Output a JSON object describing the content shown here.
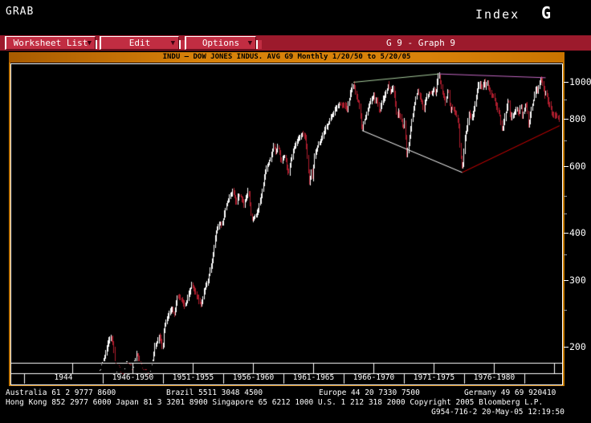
{
  "terminal": {
    "grab_label": "GRAB",
    "index_type": "Index",
    "index_key": "G"
  },
  "menubar": {
    "items": [
      {
        "label": "Worksheet List"
      },
      {
        "label": "Edit"
      },
      {
        "label": "Options"
      }
    ],
    "graph_slot": "G 9 - Graph 9"
  },
  "chart_header": {
    "title": "INDU – DOW JONES INDUS. AVG G9 Monthly 1/20/50 to 5/20/05"
  },
  "colors": {
    "menubar_bg": "#9c1a2c",
    "button_bg": "#c12d42",
    "header_orange": "#d8820a",
    "frame_orange": "#c67a00",
    "bar_up": "#ffffff",
    "bar_down": "#ad1d2d",
    "trend_green": "#a9cf9f",
    "trend_magenta": "#c468c4",
    "trend_white": "#ffffff",
    "trend_red": "#d40000",
    "axis": "#ffffff"
  },
  "chart_data": {
    "type": "candlestick",
    "title": "INDU – DOW JONES INDUS. AVG G9 Monthly 1/20/50 to 5/20/05",
    "interval": "monthly",
    "y_axis": {
      "scale": "log",
      "major_ticks": [
        1000,
        800,
        600,
        400,
        300,
        200
      ],
      "minor_ticks": [
        900,
        700,
        500,
        450,
        350,
        250
      ],
      "side": "right"
    },
    "x_axis": {
      "labels": [
        "1944",
        "1946-1950",
        "1951-1955",
        "1956-1960",
        "1961-1965",
        "1966-1970",
        "1971-1975",
        "1976-1980"
      ]
    },
    "time_range": [
      1945.42,
      1982.83
    ],
    "bar_interval_years": 0.0833,
    "up_color": "#ffffff",
    "down_color": "#ad1d2d",
    "series_anchors": [
      [
        1945.42,
        170
      ],
      [
        1945.7,
        180
      ],
      [
        1945.92,
        192
      ],
      [
        1946.1,
        205
      ],
      [
        1946.37,
        212
      ],
      [
        1946.55,
        203
      ],
      [
        1946.76,
        165
      ],
      [
        1946.92,
        177
      ],
      [
        1947.1,
        170
      ],
      [
        1947.4,
        163
      ],
      [
        1947.6,
        182
      ],
      [
        1947.9,
        177
      ],
      [
        1948.1,
        171
      ],
      [
        1948.45,
        193
      ],
      [
        1948.7,
        180
      ],
      [
        1948.9,
        172
      ],
      [
        1949.2,
        171
      ],
      [
        1949.45,
        162
      ],
      [
        1949.7,
        180
      ],
      [
        1949.92,
        200
      ],
      [
        1950.3,
        214
      ],
      [
        1950.55,
        197
      ],
      [
        1950.7,
        226
      ],
      [
        1950.92,
        235
      ],
      [
        1951.1,
        249
      ],
      [
        1951.35,
        250
      ],
      [
        1951.5,
        243
      ],
      [
        1951.75,
        270
      ],
      [
        1951.92,
        269
      ],
      [
        1952.35,
        256
      ],
      [
        1952.6,
        270
      ],
      [
        1952.92,
        292
      ],
      [
        1953.15,
        280
      ],
      [
        1953.4,
        270
      ],
      [
        1953.7,
        255
      ],
      [
        1953.92,
        281
      ],
      [
        1954.25,
        300
      ],
      [
        1954.55,
        333
      ],
      [
        1954.92,
        404
      ],
      [
        1955.2,
        425
      ],
      [
        1955.4,
        420
      ],
      [
        1955.7,
        468
      ],
      [
        1955.92,
        488
      ],
      [
        1956.3,
        516
      ],
      [
        1956.55,
        478
      ],
      [
        1956.7,
        502
      ],
      [
        1956.92,
        499
      ],
      [
        1957.15,
        475
      ],
      [
        1957.55,
        520
      ],
      [
        1957.78,
        435
      ],
      [
        1957.95,
        436
      ],
      [
        1958.3,
        455
      ],
      [
        1958.6,
        505
      ],
      [
        1958.92,
        584
      ],
      [
        1959.35,
        630
      ],
      [
        1959.58,
        679
      ],
      [
        1959.78,
        650
      ],
      [
        1959.95,
        679
      ],
      [
        1960.2,
        616
      ],
      [
        1960.5,
        640
      ],
      [
        1960.8,
        566
      ],
      [
        1960.95,
        616
      ],
      [
        1961.3,
        678
      ],
      [
        1961.6,
        702
      ],
      [
        1961.92,
        731
      ],
      [
        1962.2,
        710
      ],
      [
        1962.45,
        562
      ],
      [
        1962.52,
        536
      ],
      [
        1962.65,
        580
      ],
      [
        1962.75,
        558
      ],
      [
        1962.95,
        652
      ],
      [
        1963.4,
        700
      ],
      [
        1963.7,
        740
      ],
      [
        1963.92,
        763
      ],
      [
        1964.45,
        830
      ],
      [
        1964.92,
        874
      ],
      [
        1965.4,
        868
      ],
      [
        1965.55,
        840
      ],
      [
        1965.92,
        961
      ],
      [
        1966.1,
        985
      ],
      [
        1966.35,
        900
      ],
      [
        1966.55,
        885
      ],
      [
        1966.78,
        748
      ],
      [
        1966.95,
        786
      ],
      [
        1967.3,
        860
      ],
      [
        1967.6,
        905
      ],
      [
        1967.74,
        926
      ],
      [
        1967.86,
        880
      ],
      [
        1967.95,
        905
      ],
      [
        1968.2,
        830
      ],
      [
        1968.5,
        900
      ],
      [
        1968.75,
        935
      ],
      [
        1968.92,
        985
      ],
      [
        1969.1,
        940
      ],
      [
        1969.35,
        969
      ],
      [
        1969.6,
        810
      ],
      [
        1969.75,
        837
      ],
      [
        1969.95,
        800
      ],
      [
        1970.12,
        756
      ],
      [
        1970.25,
        786
      ],
      [
        1970.42,
        632
      ],
      [
        1970.58,
        684
      ],
      [
        1970.75,
        760
      ],
      [
        1970.95,
        839
      ],
      [
        1971.3,
        950
      ],
      [
        1971.62,
        889
      ],
      [
        1971.8,
        839
      ],
      [
        1971.95,
        890
      ],
      [
        1972.25,
        940
      ],
      [
        1972.45,
        930
      ],
      [
        1972.65,
        955
      ],
      [
        1972.78,
        930
      ],
      [
        1972.95,
        1020
      ],
      [
        1973.04,
        1052
      ],
      [
        1973.35,
        925
      ],
      [
        1973.6,
        880
      ],
      [
        1973.73,
        948
      ],
      [
        1973.85,
        947
      ],
      [
        1973.95,
        824
      ],
      [
        1974.05,
        855
      ],
      [
        1974.2,
        846
      ],
      [
        1974.4,
        830
      ],
      [
        1974.55,
        802
      ],
      [
        1974.7,
        757
      ],
      [
        1974.78,
        608
      ],
      [
        1974.85,
        650
      ],
      [
        1974.93,
        578
      ],
      [
        1975.05,
        632
      ],
      [
        1975.12,
        705
      ],
      [
        1975.35,
        760
      ],
      [
        1975.5,
        832
      ],
      [
        1975.7,
        794
      ],
      [
        1975.95,
        852
      ],
      [
        1976.12,
        930
      ],
      [
        1976.22,
        975
      ],
      [
        1976.4,
        985
      ],
      [
        1976.55,
        960
      ],
      [
        1976.72,
        1010
      ],
      [
        1976.85,
        965
      ],
      [
        1976.95,
        1005
      ],
      [
        1977.2,
        940
      ],
      [
        1977.5,
        916
      ],
      [
        1977.75,
        860
      ],
      [
        1977.95,
        831
      ],
      [
        1978.1,
        770
      ],
      [
        1978.18,
        742
      ],
      [
        1978.45,
        820
      ],
      [
        1978.62,
        877
      ],
      [
        1978.72,
        900
      ],
      [
        1978.85,
        800
      ],
      [
        1978.95,
        805
      ],
      [
        1979.1,
        825
      ],
      [
        1979.4,
        845
      ],
      [
        1979.6,
        825
      ],
      [
        1979.72,
        879
      ],
      [
        1979.82,
        816
      ],
      [
        1979.95,
        839
      ],
      [
        1980.1,
        876
      ],
      [
        1980.22,
        850
      ],
      [
        1980.33,
        759
      ],
      [
        1980.5,
        820
      ],
      [
        1980.65,
        868
      ],
      [
        1980.85,
        933
      ],
      [
        1980.95,
        964
      ],
      [
        1981.1,
        947
      ],
      [
        1981.3,
        1024
      ],
      [
        1981.5,
        992
      ],
      [
        1981.65,
        925
      ],
      [
        1981.78,
        940
      ],
      [
        1981.95,
        875
      ],
      [
        1982.1,
        871
      ],
      [
        1982.22,
        824
      ],
      [
        1982.4,
        820
      ],
      [
        1982.55,
        812
      ],
      [
        1982.7,
        808
      ],
      [
        1982.83,
        802
      ]
    ],
    "overlays": [
      {
        "name": "top-trendline-green",
        "color": "#a9cf9f",
        "points": [
          [
            1966.07,
            1000
          ],
          [
            1973.04,
            1052
          ]
        ]
      },
      {
        "name": "top-trendline-magenta",
        "color": "#c468c4",
        "points": [
          [
            1973.04,
            1052
          ],
          [
            1981.72,
            1028
          ]
        ]
      },
      {
        "name": "support-trendline-white",
        "color": "#ffffff",
        "points": [
          [
            1966.78,
            746
          ],
          [
            1974.93,
            578
          ]
        ]
      },
      {
        "name": "rising-trendline-red",
        "color": "#d40000",
        "points": [
          [
            1974.93,
            578
          ],
          [
            1982.85,
            768
          ]
        ]
      }
    ]
  },
  "footer": {
    "contacts": [
      "Australia 61 2 9777 8600",
      "Brazil 5511 3048 4500",
      "Europe 44 20 7330 7500",
      "Germany 49 69 920410"
    ],
    "line2": "Hong Kong 852 2977 6000 Japan 81 3 3201 8900 Singapore 65 6212 1000 U.S. 1 212 318 2000 Copyright 2005 Bloomberg L.P.",
    "line3": "G954-716-2 20-May-05 12:19:50"
  }
}
